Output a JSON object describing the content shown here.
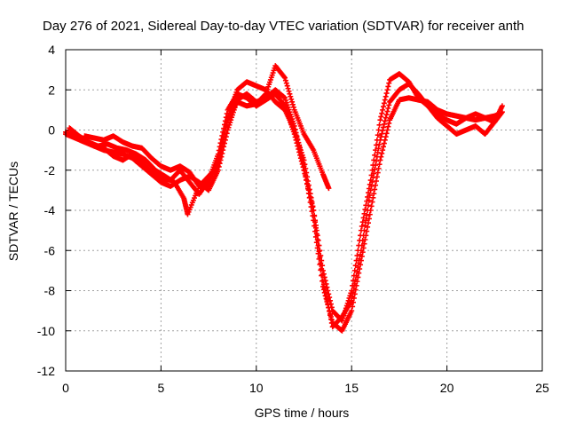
{
  "chart_data": {
    "type": "scatter",
    "title": "Day 276 of 2021, Sidereal Day-to-day VTEC variation (SDTVAR) for receiver anth",
    "xlabel": "GPS time / hours",
    "ylabel": "SDTVAR / TECUs",
    "xlim": [
      0,
      25
    ],
    "ylim": [
      -12,
      4
    ],
    "xticks": [
      0,
      5,
      10,
      15,
      20,
      25
    ],
    "yticks": [
      -12,
      -10,
      -8,
      -6,
      -4,
      -2,
      0,
      2,
      4
    ],
    "xtick_labels": [
      "0",
      "5",
      "10",
      "15",
      "20",
      "25"
    ],
    "ytick_labels": [
      "-12",
      "-10",
      "-8",
      "-6",
      "-4",
      "-2",
      "0",
      "2",
      "4"
    ],
    "grid": true,
    "marker": "+",
    "colors": {
      "series": "#ff0000",
      "grid": "#a0a0a0",
      "axis": "#000000"
    },
    "series": [
      {
        "name": "trace-1",
        "x": [
          0,
          0.5,
          1,
          1.5,
          2,
          2.5,
          3,
          3.5,
          4,
          4.5,
          5,
          5.5,
          6,
          6.5,
          7,
          7.5,
          8,
          8.5,
          9,
          9.5,
          10,
          10.5,
          11,
          11.5,
          12,
          12.5,
          13,
          13.5,
          14,
          14.5,
          15,
          15.5,
          16,
          16.5,
          17,
          17.5,
          18,
          18.5,
          19,
          19.5,
          20,
          20.5,
          21,
          21.5,
          22,
          22.5,
          22.8
        ],
        "y": [
          -0.2,
          -0.4,
          -0.6,
          -0.8,
          -1.0,
          -1.1,
          -1.2,
          -1.4,
          -1.8,
          -2.2,
          -2.6,
          -2.8,
          -2.5,
          -2.3,
          -2.6,
          -3.0,
          -2.0,
          0.0,
          1.5,
          1.8,
          1.4,
          1.6,
          2.0,
          1.6,
          0.2,
          -1.8,
          -4.5,
          -7.8,
          -9.6,
          -10.0,
          -9.0,
          -6.5,
          -4.0,
          -1.5,
          0.5,
          1.5,
          1.6,
          1.5,
          1.4,
          1.0,
          0.8,
          0.7,
          0.6,
          0.5,
          0.6,
          0.7,
          0.8
        ]
      },
      {
        "name": "trace-2",
        "x": [
          0.2,
          0.7,
          1.2,
          1.7,
          2.2,
          2.7,
          3.2,
          3.7,
          4.2,
          4.7,
          5.2,
          5.7,
          6.2,
          6.4,
          7.0,
          7.5,
          8.0,
          8.5,
          9.0,
          9.5,
          10.0,
          10.5,
          11.0,
          11.5,
          12.0,
          12.5,
          13.0,
          13.5,
          13.8
        ],
        "y": [
          0.1,
          -0.3,
          -0.6,
          -0.8,
          -0.7,
          -0.9,
          -1.0,
          -1.2,
          -1.5,
          -2.0,
          -2.3,
          -2.6,
          -3.4,
          -4.2,
          -2.8,
          -2.7,
          -1.5,
          0.5,
          1.4,
          1.2,
          1.3,
          1.8,
          3.2,
          2.6,
          1.0,
          -0.2,
          -1.0,
          -2.2,
          -2.9
        ]
      },
      {
        "name": "trace-3",
        "x": [
          1.0,
          1.5,
          2.0,
          2.5,
          3.0,
          3.5,
          4.0,
          4.5,
          5.0,
          5.5,
          6.0,
          6.5,
          7.0,
          7.5,
          8.0,
          8.5,
          9.0,
          9.5,
          10.0,
          10.5,
          11.0,
          11.5,
          12.0,
          12.5,
          13.0,
          13.5,
          14.0,
          14.5,
          15.0,
          15.5,
          16.0,
          16.5,
          17.0,
          17.5,
          18.0,
          18.5,
          19.0,
          19.5,
          20.0,
          20.5,
          21.0,
          21.5,
          22.0,
          22.5,
          22.9
        ],
        "y": [
          -0.3,
          -0.4,
          -0.5,
          -0.3,
          -0.6,
          -0.8,
          -0.9,
          -1.4,
          -1.8,
          -2.0,
          -1.8,
          -2.1,
          -2.8,
          -2.3,
          -1.8,
          0.6,
          2.0,
          2.4,
          2.2,
          2.0,
          1.4,
          1.0,
          0.0,
          -1.5,
          -4.0,
          -7.0,
          -9.0,
          -9.5,
          -8.0,
          -5.0,
          -2.5,
          0.5,
          2.5,
          2.8,
          2.4,
          1.6,
          1.2,
          0.6,
          0.2,
          -0.2,
          0.0,
          0.2,
          -0.2,
          0.4,
          1.2
        ]
      },
      {
        "name": "trace-4",
        "x": [
          0.0,
          0.5,
          1.0,
          1.5,
          2.0,
          2.5,
          3.0,
          3.5,
          4.0,
          4.5,
          5.0,
          5.5,
          6.0,
          6.5,
          7.0,
          7.5,
          8.0,
          8.5,
          9.0,
          9.5,
          10.0,
          10.5,
          11.0,
          11.5,
          12.0,
          12.5,
          13.0,
          13.5,
          14.0,
          14.5,
          15.0,
          15.5,
          16.0,
          16.5,
          17.0,
          17.5,
          18.0,
          18.5,
          19.0,
          19.5,
          20.0,
          20.5,
          21.0,
          21.5,
          22.0,
          22.5,
          22.9
        ],
        "y": [
          -0.1,
          -0.3,
          -0.5,
          -0.8,
          -0.9,
          -1.3,
          -1.5,
          -1.2,
          -1.6,
          -2.1,
          -2.4,
          -2.5,
          -2.0,
          -2.6,
          -3.2,
          -2.5,
          -1.2,
          1.0,
          1.8,
          1.6,
          1.2,
          1.5,
          1.8,
          1.2,
          -0.2,
          -2.0,
          -4.0,
          -7.5,
          -9.8,
          -9.3,
          -8.5,
          -6.0,
          -3.0,
          -0.5,
          1.4,
          2.0,
          2.3,
          1.8,
          1.2,
          0.8,
          0.5,
          0.3,
          0.6,
          0.8,
          0.6,
          0.4,
          0.9
        ]
      }
    ]
  }
}
